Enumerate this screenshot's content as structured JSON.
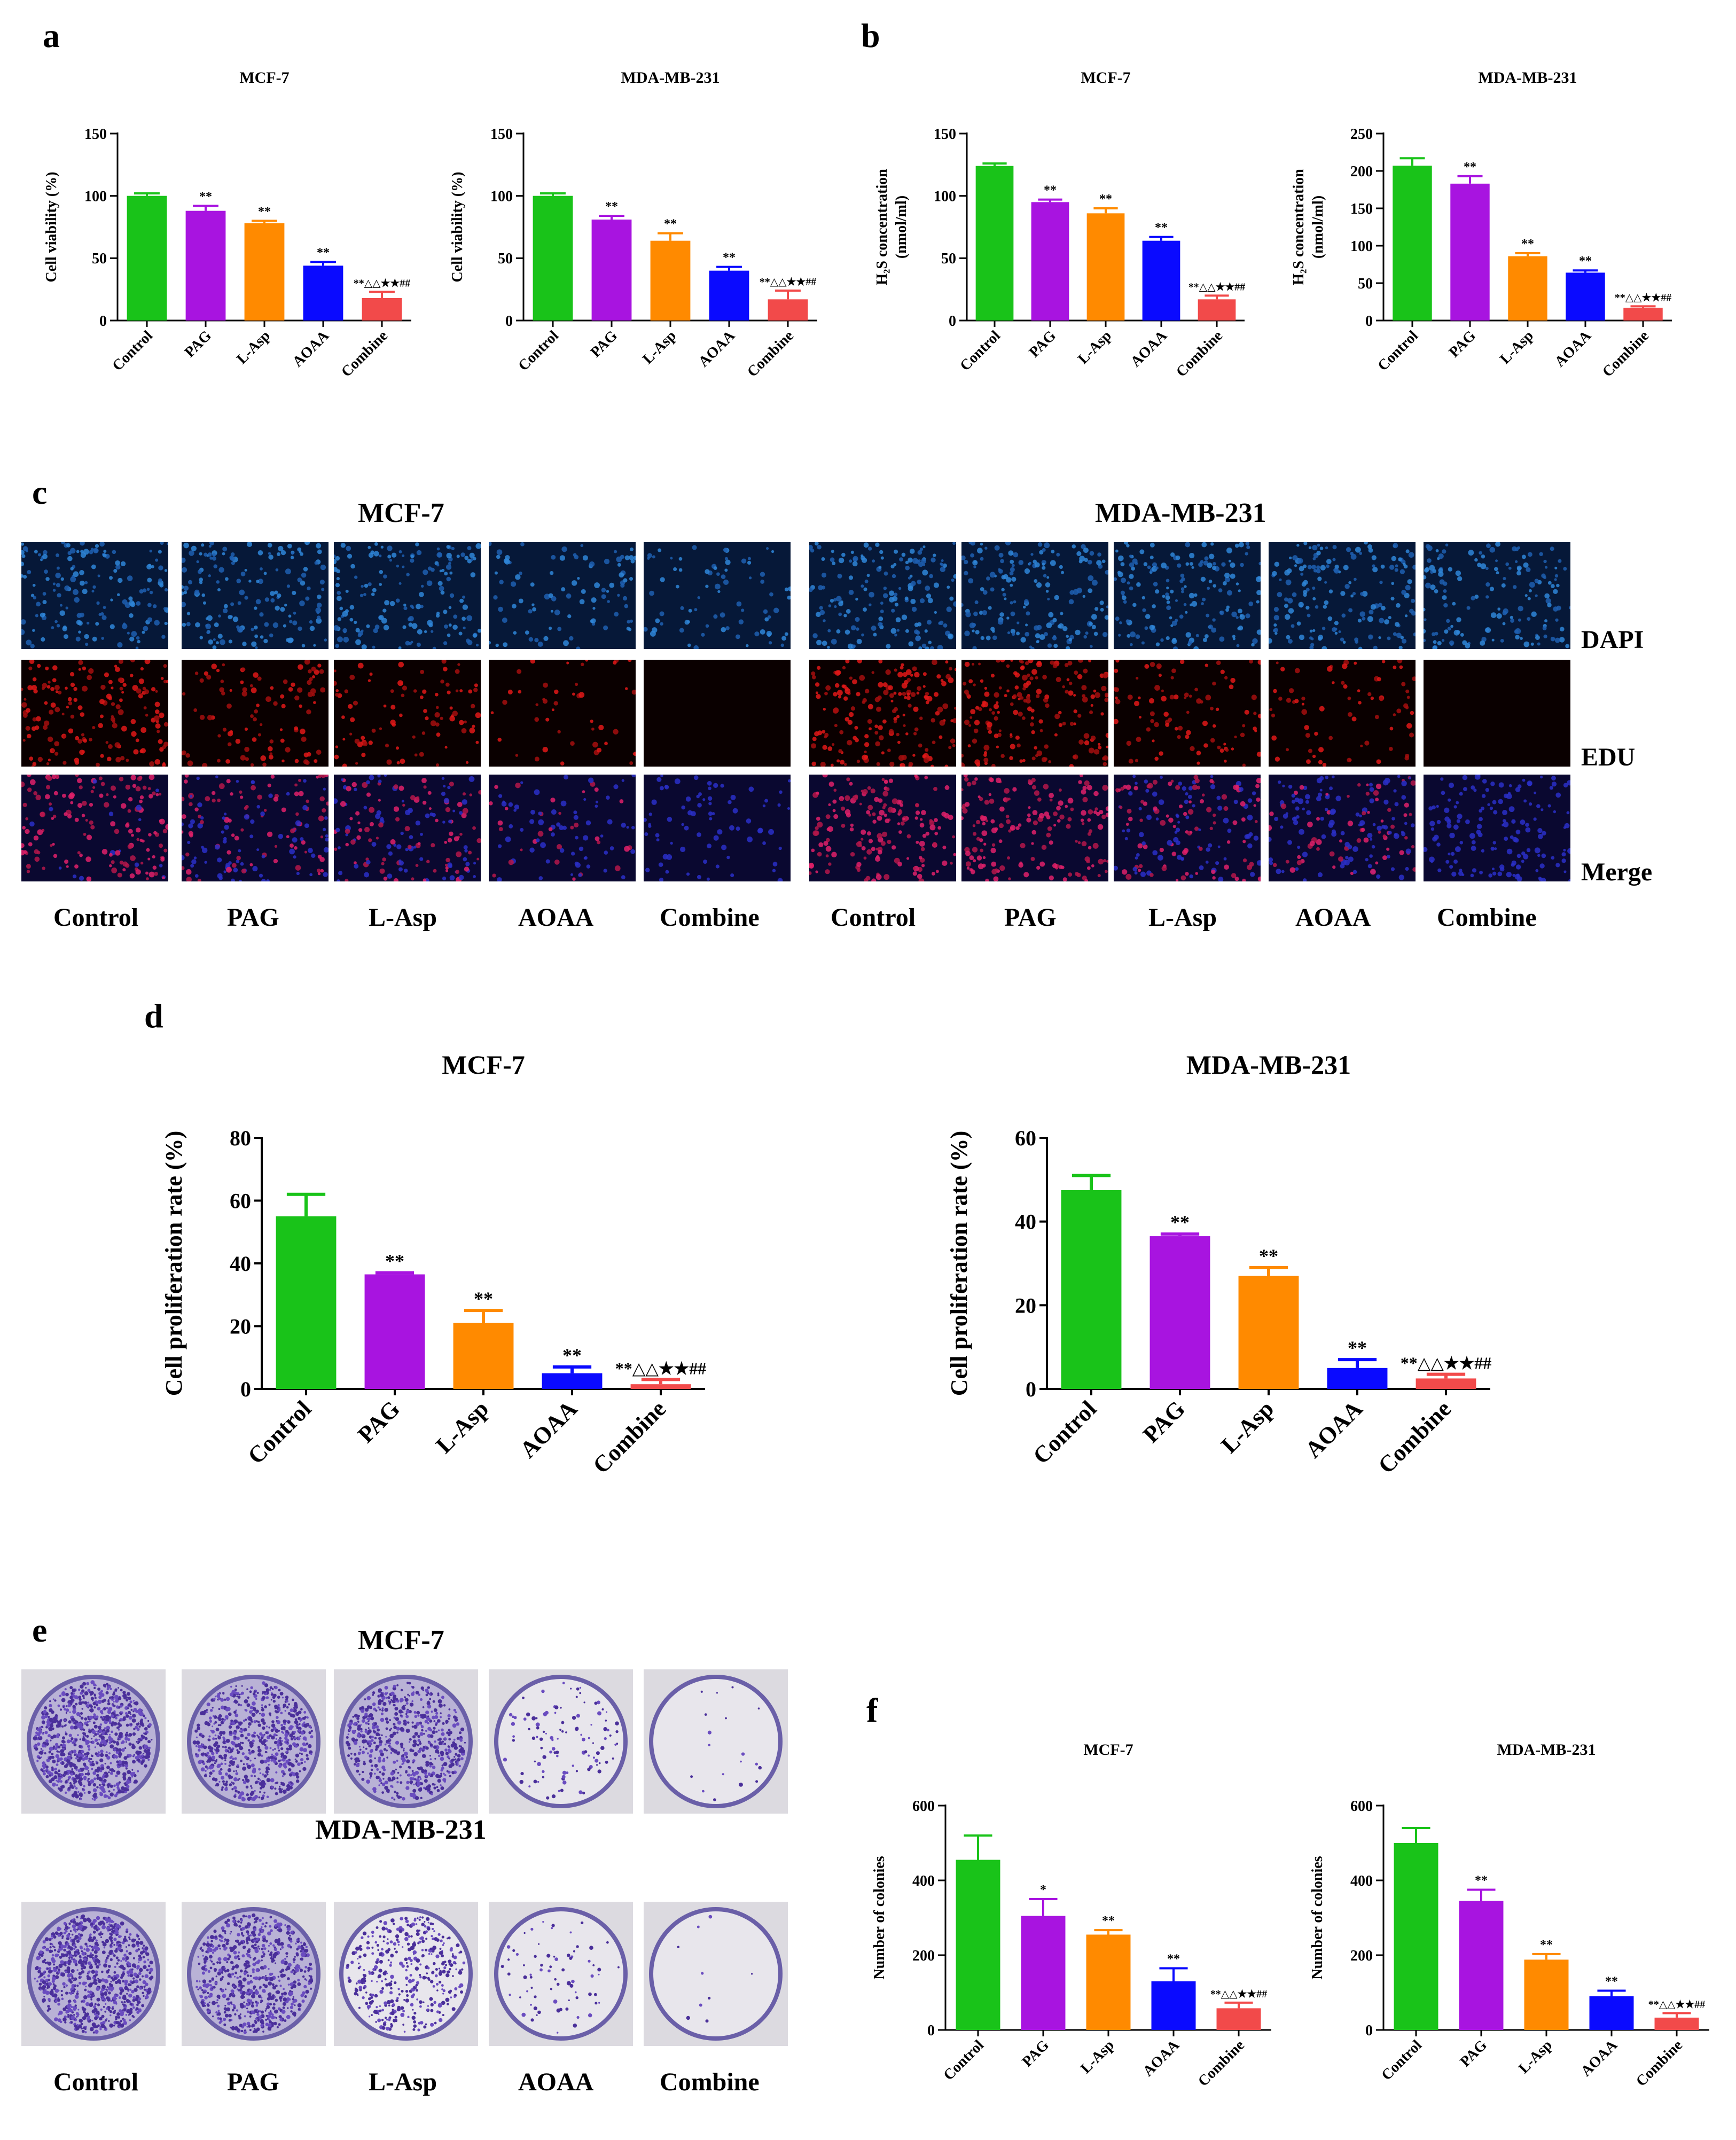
{
  "panels": {
    "a": "a",
    "b": "b",
    "c": "c",
    "d": "d",
    "e": "e",
    "f": "f"
  },
  "colors": {
    "Control": "#19c319",
    "PAG": "#a814e0",
    "L-Asp": "#ff8a00",
    "AOAA": "#0a0aff",
    "Combine": "#f24a4a"
  },
  "microscopy": {
    "cell_lines": [
      "MCF-7",
      "MDA-MB-231"
    ],
    "conditions": [
      "Control",
      "PAG",
      "L-Asp",
      "AOAA",
      "Combine"
    ],
    "stains": [
      "DAPI",
      "EDU",
      "Merge"
    ]
  },
  "colony_images": {
    "cell_lines": [
      "MCF-7",
      "MDA-MB-231"
    ],
    "conditions": [
      "Control",
      "PAG",
      "L-Asp",
      "AOAA",
      "Combine"
    ]
  },
  "chart_data": [
    {
      "id": "a-mcf7",
      "panel": "a",
      "type": "bar",
      "title": "MCF-7",
      "ylabel": "Cell viability (%)",
      "xlabel": "",
      "categories": [
        "Control",
        "PAG",
        "L-Asp",
        "AOAA",
        "Combine"
      ],
      "values": [
        100,
        88,
        78,
        44,
        18
      ],
      "errors": [
        2,
        4,
        2,
        3,
        5
      ],
      "annotations": [
        "",
        "**",
        "**",
        "**",
        "**△△★★##"
      ],
      "ylim": [
        0,
        150
      ],
      "yticks": [
        0,
        50,
        100,
        150
      ],
      "tick_labels": [
        "0",
        "50",
        "100",
        "150"
      ]
    },
    {
      "id": "a-mda",
      "panel": "a",
      "type": "bar",
      "title": "MDA-MB-231",
      "ylabel": "Cell viability (%)",
      "xlabel": "",
      "categories": [
        "Control",
        "PAG",
        "L-Asp",
        "AOAA",
        "Combine"
      ],
      "values": [
        100,
        81,
        64,
        40,
        17
      ],
      "errors": [
        2,
        3,
        6,
        3,
        7
      ],
      "annotations": [
        "",
        "**",
        "**",
        "**",
        "**△△★★##"
      ],
      "ylim": [
        0,
        150
      ],
      "yticks": [
        0,
        50,
        100,
        150
      ],
      "tick_labels": [
        "0",
        "50",
        "100",
        "150"
      ]
    },
    {
      "id": "b-mcf7",
      "panel": "b",
      "type": "bar",
      "title": "MCF-7",
      "ylabel": "H₂S concentration",
      "ylabel2": "(nmol/ml)",
      "xlabel": "",
      "categories": [
        "Control",
        "PAG",
        "L-Asp",
        "AOAA",
        "Combine"
      ],
      "values": [
        124,
        95,
        86,
        64,
        17
      ],
      "errors": [
        2,
        2,
        4,
        3,
        3
      ],
      "annotations": [
        "",
        "**",
        "**",
        "**",
        "**△△★★##"
      ],
      "ylim": [
        0,
        150
      ],
      "yticks": [
        0,
        50,
        100,
        150
      ],
      "tick_labels": [
        "0",
        "50",
        "100",
        "150"
      ]
    },
    {
      "id": "b-mda",
      "panel": "b",
      "type": "bar",
      "title": "MDA-MB-231",
      "ylabel": "H₂S concentration",
      "ylabel2": "(nmol/ml)",
      "xlabel": "",
      "categories": [
        "Control",
        "PAG",
        "L-Asp",
        "AOAA",
        "Combine"
      ],
      "values": [
        207,
        183,
        86,
        64,
        17
      ],
      "errors": [
        10,
        10,
        4,
        3,
        2
      ],
      "annotations": [
        "",
        "**",
        "**",
        "**",
        "**△△★★##"
      ],
      "ylim": [
        0,
        250
      ],
      "yticks": [
        0,
        50,
        100,
        150,
        200,
        250
      ],
      "tick_labels": [
        "0",
        "50",
        "100",
        "150",
        "200",
        "250"
      ]
    },
    {
      "id": "d-mcf7",
      "panel": "d",
      "type": "bar",
      "title": "MCF-7",
      "ylabel": "Cell proliferation rate (%)",
      "xlabel": "",
      "categories": [
        "Control",
        "PAG",
        "L-Asp",
        "AOAA",
        "Combine"
      ],
      "values": [
        55,
        36.5,
        21,
        5,
        1.5
      ],
      "errors": [
        7,
        0.5,
        4,
        2,
        1.5
      ],
      "annotations": [
        "",
        "**",
        "**",
        "**",
        "**△△★★##"
      ],
      "ylim": [
        0,
        80
      ],
      "yticks": [
        0,
        20,
        40,
        60,
        80
      ],
      "tick_labels": [
        "0",
        "20",
        "40",
        "60",
        "80"
      ]
    },
    {
      "id": "d-mda",
      "panel": "d",
      "type": "bar",
      "title": "MDA-MB-231",
      "ylabel": "Cell proliferation rate (%)",
      "xlabel": "",
      "categories": [
        "Control",
        "PAG",
        "L-Asp",
        "AOAA",
        "Combine"
      ],
      "values": [
        47.5,
        36.5,
        27,
        5,
        2.5
      ],
      "errors": [
        3.5,
        0.5,
        2,
        2,
        1
      ],
      "annotations": [
        "",
        "**",
        "**",
        "**",
        "**△△★★##"
      ],
      "ylim": [
        0,
        60
      ],
      "yticks": [
        0,
        20,
        40,
        60
      ],
      "tick_labels": [
        "0",
        "20",
        "40",
        "60"
      ]
    },
    {
      "id": "f-mcf7",
      "panel": "f",
      "type": "bar",
      "title": "MCF-7",
      "ylabel": "Number of colonies",
      "xlabel": "",
      "categories": [
        "Control",
        "PAG",
        "L-Asp",
        "AOAA",
        "Combine"
      ],
      "values": [
        455,
        305,
        255,
        130,
        58
      ],
      "errors": [
        65,
        45,
        12,
        35,
        15
      ],
      "annotations": [
        "",
        "*",
        "**",
        "**",
        "**△△★★##"
      ],
      "ylim": [
        0,
        600
      ],
      "yticks": [
        0,
        200,
        400,
        600
      ],
      "tick_labels": [
        "0",
        "200",
        "400",
        "600"
      ]
    },
    {
      "id": "f-mda",
      "panel": "f",
      "type": "bar",
      "title": "MDA-MB-231",
      "ylabel": "Number of colonies",
      "xlabel": "",
      "categories": [
        "Control",
        "PAG",
        "L-Asp",
        "AOAA",
        "Combine"
      ],
      "values": [
        500,
        345,
        188,
        90,
        33
      ],
      "errors": [
        40,
        30,
        15,
        15,
        12
      ],
      "annotations": [
        "",
        "**",
        "**",
        "**",
        "**△△★★##"
      ],
      "ylim": [
        0,
        600
      ],
      "yticks": [
        0,
        200,
        400,
        600
      ],
      "tick_labels": [
        "0",
        "200",
        "400",
        "600"
      ]
    }
  ]
}
